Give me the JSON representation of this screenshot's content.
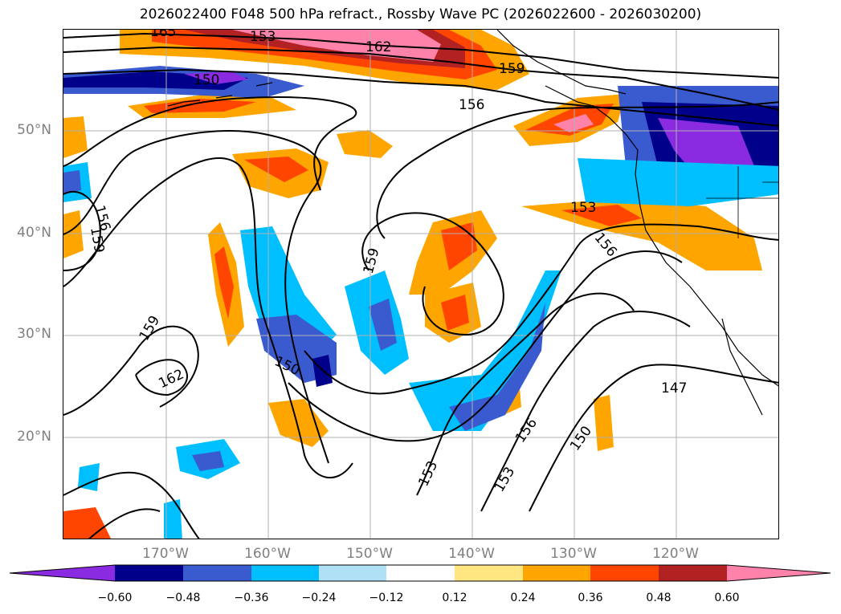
{
  "title": "2026022400 F048 500 hPa refract., Rossby Wave PC (2026022600 - 2026030200)",
  "lat_labels": [
    "50°N",
    "40°N",
    "30°N",
    "20°N"
  ],
  "lon_labels": [
    "170°W",
    "160°W",
    "150°W",
    "140°W",
    "130°W",
    "120°W"
  ],
  "colorbar": {
    "ticks": [
      "−0.60",
      "−0.48",
      "−0.36",
      "−0.24",
      "−0.12",
      "0.12",
      "0.24",
      "0.36",
      "0.48",
      "0.60"
    ],
    "colors": [
      "#8a2be2",
      "#00008b",
      "#3a5bd0",
      "#00bfff",
      "#b0e0f6",
      "#ffffff",
      "#ffe680",
      "#ffa500",
      "#ff4500",
      "#b22222",
      "#ff82ab"
    ]
  },
  "contour_labels": [
    {
      "text": "165"
    },
    {
      "text": "162"
    },
    {
      "text": "159"
    },
    {
      "text": "156"
    },
    {
      "text": "153"
    },
    {
      "text": "150"
    },
    {
      "text": "147"
    },
    {
      "text": "156"
    },
    {
      "text": "159"
    },
    {
      "text": "162"
    },
    {
      "text": "159"
    },
    {
      "text": "150"
    },
    {
      "text": "153"
    },
    {
      "text": "153"
    },
    {
      "text": "156"
    },
    {
      "text": "150"
    },
    {
      "text": "159"
    },
    {
      "text": "153"
    },
    {
      "text": "156"
    }
  ]
}
